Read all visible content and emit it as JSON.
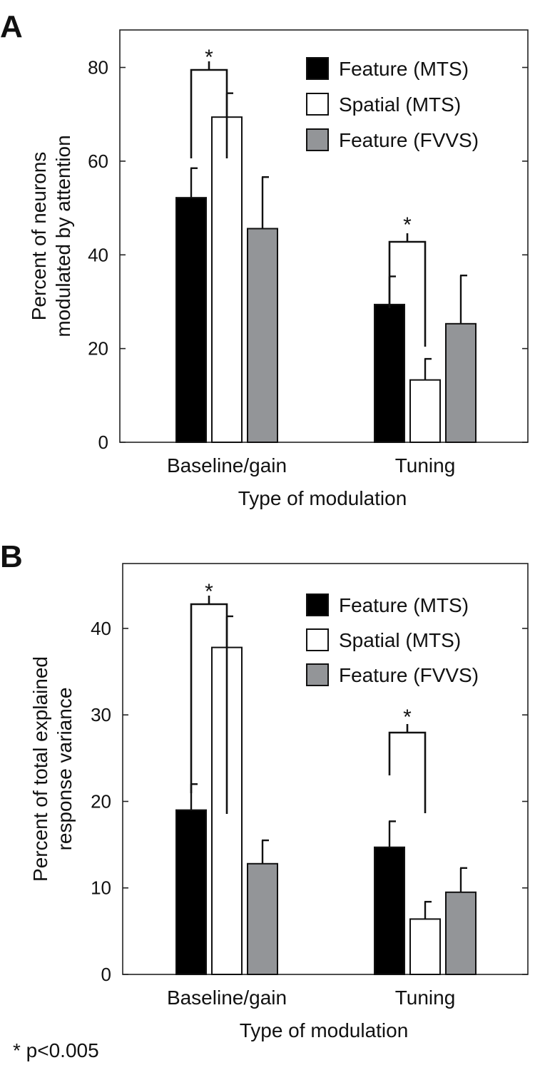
{
  "footnote": "* p<0.005",
  "chart_data": [
    {
      "type": "bar",
      "panel": "A",
      "categories": [
        "Baseline/gain",
        "Tuning"
      ],
      "series": [
        {
          "name": "Feature (MTS)",
          "values": [
            52.2,
            29.4
          ],
          "errors": [
            6.3,
            6.0
          ],
          "color": "#000000"
        },
        {
          "name": "Spatial (MTS)",
          "values": [
            69.4,
            13.3
          ],
          "errors": [
            5.1,
            4.5
          ],
          "color": "#ffffff"
        },
        {
          "name": "Feature (FVVS)",
          "values": [
            45.6,
            25.3
          ],
          "errors": [
            11.0,
            10.3
          ],
          "color": "#939598"
        }
      ],
      "xlabel": "Type of modulation",
      "ylabel": "Percent of neurons modulated by attention",
      "ylim": [
        0,
        88
      ],
      "yticks": [
        0,
        20,
        40,
        60,
        80
      ],
      "significance": [
        {
          "category": "Baseline/gain",
          "series": [
            0,
            1
          ],
          "label": "*"
        },
        {
          "category": "Tuning",
          "series": [
            0,
            1
          ],
          "label": "*"
        }
      ],
      "legend": "top-right",
      "grid": false
    },
    {
      "type": "bar",
      "panel": "B",
      "categories": [
        "Baseline/gain",
        "Tuning"
      ],
      "series": [
        {
          "name": "Feature (MTS)",
          "values": [
            19.0,
            14.7
          ],
          "errors": [
            3.0,
            3.0
          ],
          "color": "#000000"
        },
        {
          "name": "Spatial (MTS)",
          "values": [
            37.8,
            6.4
          ],
          "errors": [
            3.6,
            2.0
          ],
          "color": "#ffffff"
        },
        {
          "name": "Feature (FVVS)",
          "values": [
            12.8,
            9.5
          ],
          "errors": [
            2.7,
            2.8
          ],
          "color": "#939598"
        }
      ],
      "xlabel": "Type of modulation",
      "ylabel": "Percent of total explained response variance",
      "ylim": [
        0,
        47.5
      ],
      "yticks": [
        0,
        10,
        20,
        30,
        40
      ],
      "significance": [
        {
          "category": "Baseline/gain",
          "series": [
            0,
            1
          ],
          "label": "*"
        },
        {
          "category": "Tuning",
          "series": [
            0,
            1
          ],
          "label": "*"
        }
      ],
      "legend": "top-right",
      "grid": false
    }
  ]
}
